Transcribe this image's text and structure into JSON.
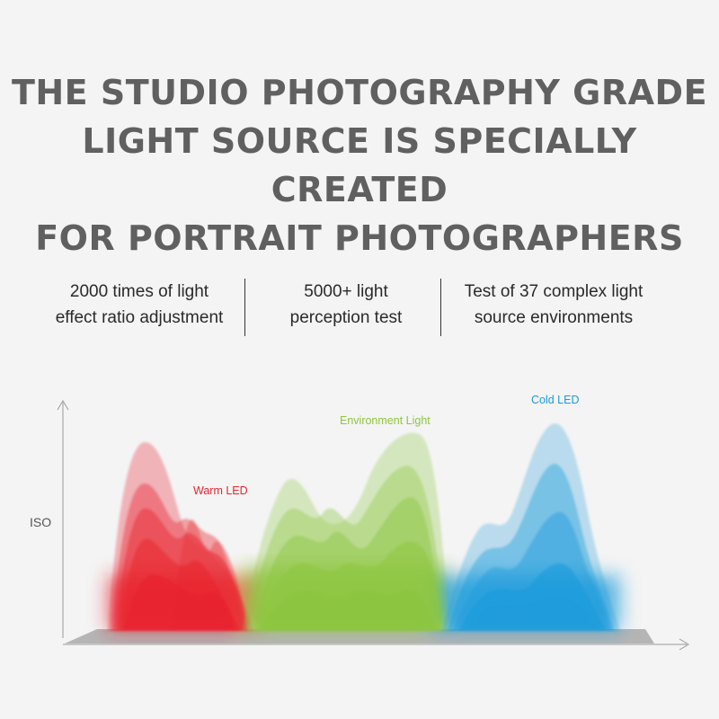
{
  "headline": {
    "line1": "THE STUDIO PHOTOGRAPHY GRADE",
    "line2": "LIGHT SOURCE IS SPECIALLY CREATED",
    "line3": "FOR PORTRAIT PHOTOGRAPHERS"
  },
  "features": [
    {
      "line1": "2000 times of light",
      "line2": "effect ratio adjustment"
    },
    {
      "line1": "5000+ light",
      "line2": "perception test"
    },
    {
      "line1": "Test of 37 complex light",
      "line2": "source environments"
    }
  ],
  "chart": {
    "y_axis_label": "ISO",
    "series": [
      {
        "label": "Warm LED",
        "color": "#e8242f"
      },
      {
        "label": "Environment Light",
        "color": "#8cc63f"
      },
      {
        "label": "Cold LED",
        "color": "#1b9bdc"
      }
    ]
  }
}
